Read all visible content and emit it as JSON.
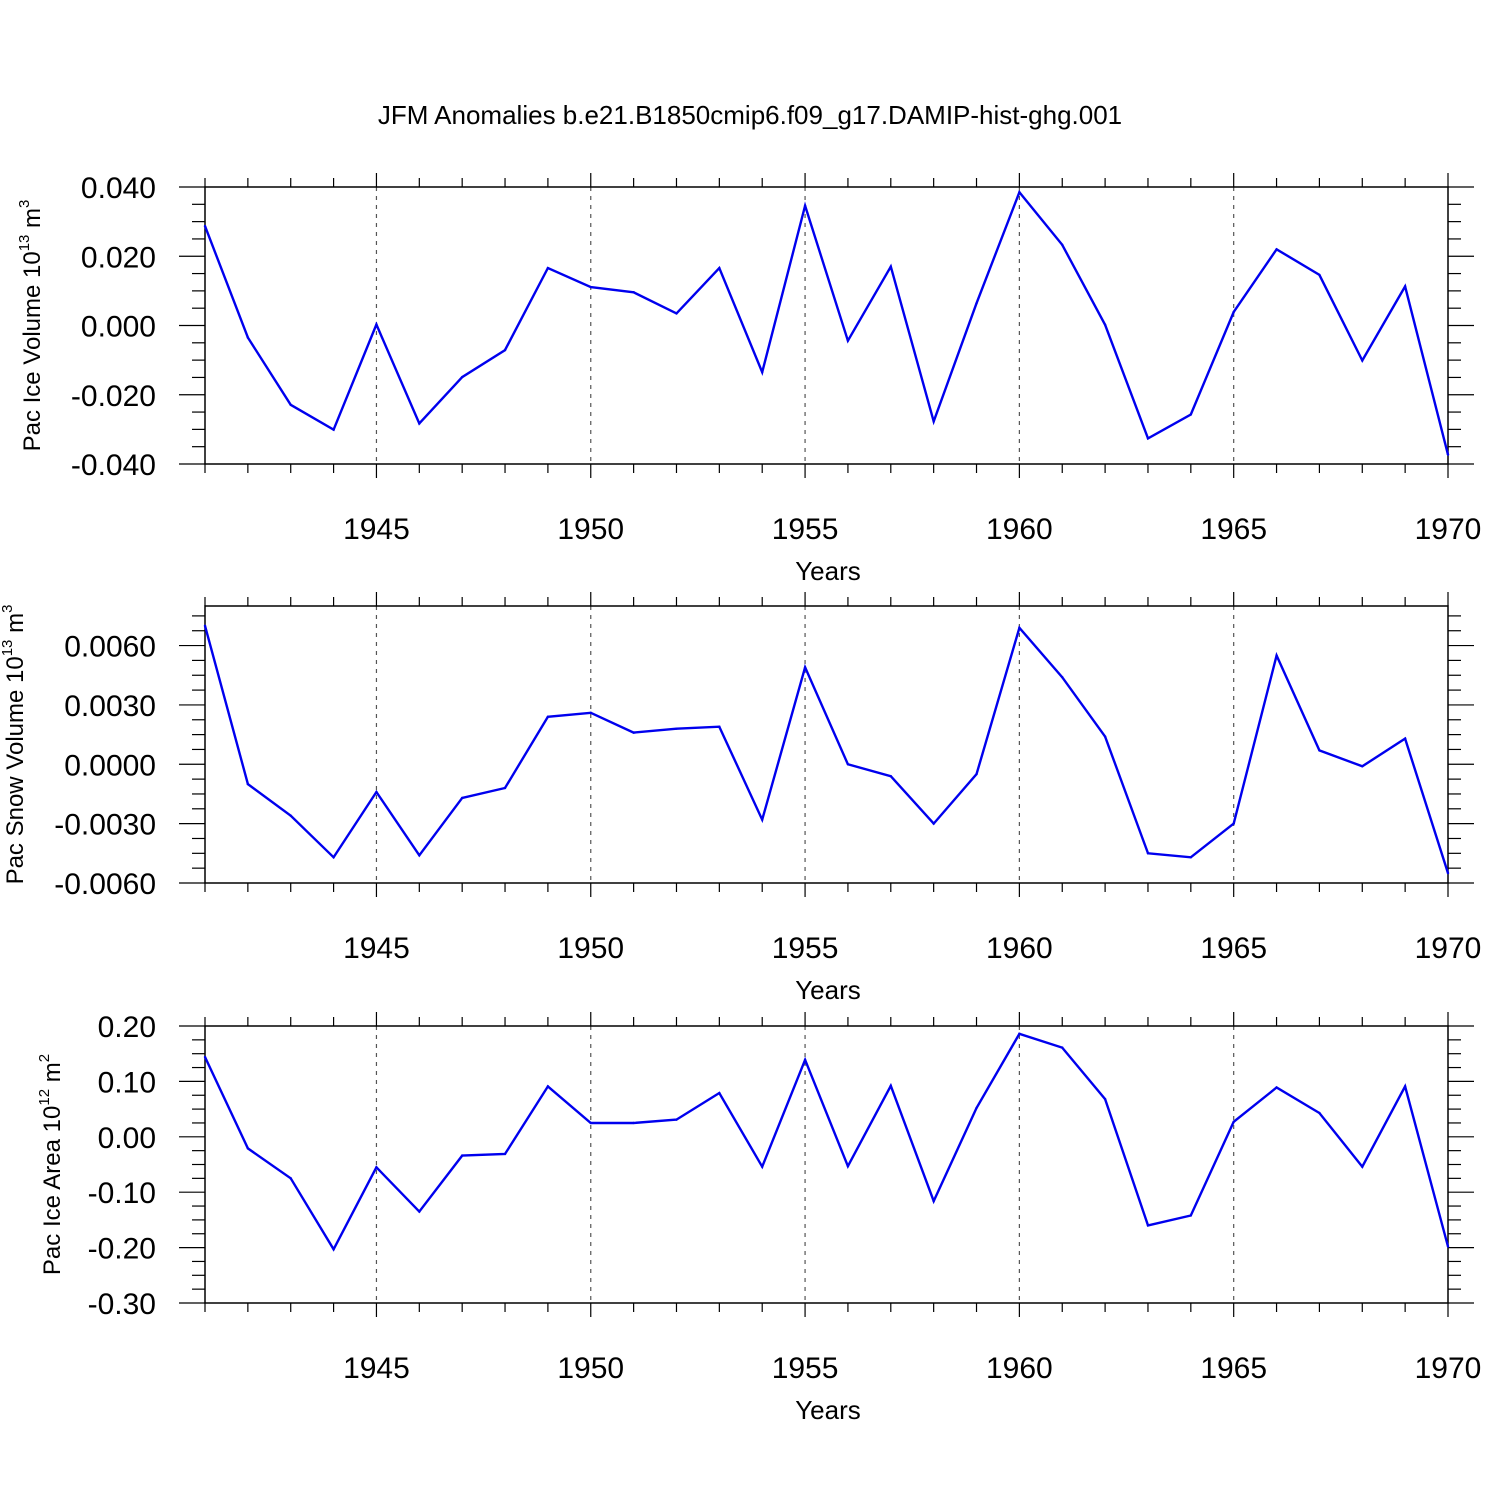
{
  "title": "JFM Anomalies b.e21.B1850cmip6.f09_g17.DAMIP-hist-ghg.001",
  "colors": {
    "line": "#0000ee",
    "axis": "#000000",
    "refline": "#555555"
  },
  "chart_data": [
    {
      "type": "line",
      "ylabel": "Pac Ice Volume 10",
      "ylabel_exp": "13",
      "ylabel_unit": " m",
      "ylabel_unit_exp": "3",
      "xlabel": "Years",
      "xlim": [
        1941,
        1970
      ],
      "ylim": [
        -0.04,
        0.04
      ],
      "x_ticks": [
        "1945",
        "1950",
        "1955",
        "1960",
        "1965",
        "1970"
      ],
      "y_ticks": [
        "0.040",
        "0.020",
        "0.000",
        "-0.020",
        "-0.040"
      ],
      "x_reference_lines": [
        1945,
        1950,
        1955,
        1960,
        1965
      ],
      "x": [
        1941,
        1942,
        1943,
        1944,
        1945,
        1946,
        1947,
        1948,
        1949,
        1950,
        1951,
        1952,
        1953,
        1954,
        1955,
        1956,
        1957,
        1958,
        1959,
        1960,
        1961,
        1962,
        1963,
        1964,
        1965,
        1966,
        1967,
        1968,
        1969,
        1970
      ],
      "values": [
        0.0287,
        -0.0035,
        -0.0229,
        -0.0301,
        0.0003,
        -0.0283,
        -0.0149,
        -0.0071,
        0.0166,
        0.0111,
        0.0096,
        0.0035,
        0.0166,
        -0.0135,
        0.0346,
        -0.0044,
        0.017,
        -0.0277,
        0.0064,
        0.0385,
        0.0233,
        0.0002,
        -0.0326,
        -0.0257,
        0.0039,
        0.022,
        0.0146,
        -0.0101,
        0.0113,
        -0.0373
      ]
    },
    {
      "type": "line",
      "ylabel": "Pac Snow Volume 10",
      "ylabel_exp": "13",
      "ylabel_unit": " m",
      "ylabel_unit_exp": "3",
      "xlabel": "Years",
      "xlim": [
        1941,
        1970
      ],
      "ylim": [
        -0.006,
        0.008
      ],
      "x_ticks": [
        "1945",
        "1950",
        "1955",
        "1960",
        "1965",
        "1970"
      ],
      "y_ticks": [
        "0.0060",
        "0.0030",
        "0.0000",
        "-0.0030",
        "-0.0060"
      ],
      "x_reference_lines": [
        1945,
        1950,
        1955,
        1960,
        1965
      ],
      "x": [
        1941,
        1942,
        1943,
        1944,
        1945,
        1946,
        1947,
        1948,
        1949,
        1950,
        1951,
        1952,
        1953,
        1954,
        1955,
        1956,
        1957,
        1958,
        1959,
        1960,
        1961,
        1962,
        1963,
        1964,
        1965,
        1966,
        1967,
        1968,
        1969,
        1970
      ],
      "values": [
        0.007,
        -0.001,
        -0.0026,
        -0.0047,
        -0.0014,
        -0.0046,
        -0.0017,
        -0.0012,
        0.0024,
        0.0026,
        0.0016,
        0.0018,
        0.0019,
        -0.0028,
        0.0049,
        0.0,
        -0.0006,
        -0.003,
        -0.0005,
        0.0069,
        0.0044,
        0.0014,
        -0.0045,
        -0.0047,
        -0.003,
        0.0055,
        0.0007,
        -0.0001,
        0.0013,
        -0.0055
      ]
    },
    {
      "type": "line",
      "ylabel": "Pac Ice Area 10",
      "ylabel_exp": "12",
      "ylabel_unit": " m",
      "ylabel_unit_exp": "2",
      "xlabel": "Years",
      "xlim": [
        1941,
        1970
      ],
      "ylim": [
        -0.3,
        0.2
      ],
      "x_ticks": [
        "1945",
        "1950",
        "1955",
        "1960",
        "1965",
        "1970"
      ],
      "y_ticks": [
        "0.20",
        "0.10",
        "0.00",
        "-0.10",
        "-0.20",
        "-0.30"
      ],
      "x_reference_lines": [
        1945,
        1950,
        1955,
        1960,
        1965
      ],
      "x": [
        1941,
        1942,
        1943,
        1944,
        1945,
        1946,
        1947,
        1948,
        1949,
        1950,
        1951,
        1952,
        1953,
        1954,
        1955,
        1956,
        1957,
        1958,
        1959,
        1960,
        1961,
        1962,
        1963,
        1964,
        1965,
        1966,
        1967,
        1968,
        1969,
        1970
      ],
      "values": [
        0.144,
        -0.021,
        -0.075,
        -0.203,
        -0.055,
        -0.135,
        -0.034,
        -0.031,
        0.091,
        0.025,
        0.025,
        0.031,
        0.079,
        -0.054,
        0.139,
        -0.053,
        0.092,
        -0.116,
        0.052,
        0.186,
        0.161,
        0.068,
        -0.16,
        -0.142,
        0.027,
        0.089,
        0.043,
        -0.054,
        0.091,
        -0.198
      ]
    }
  ]
}
